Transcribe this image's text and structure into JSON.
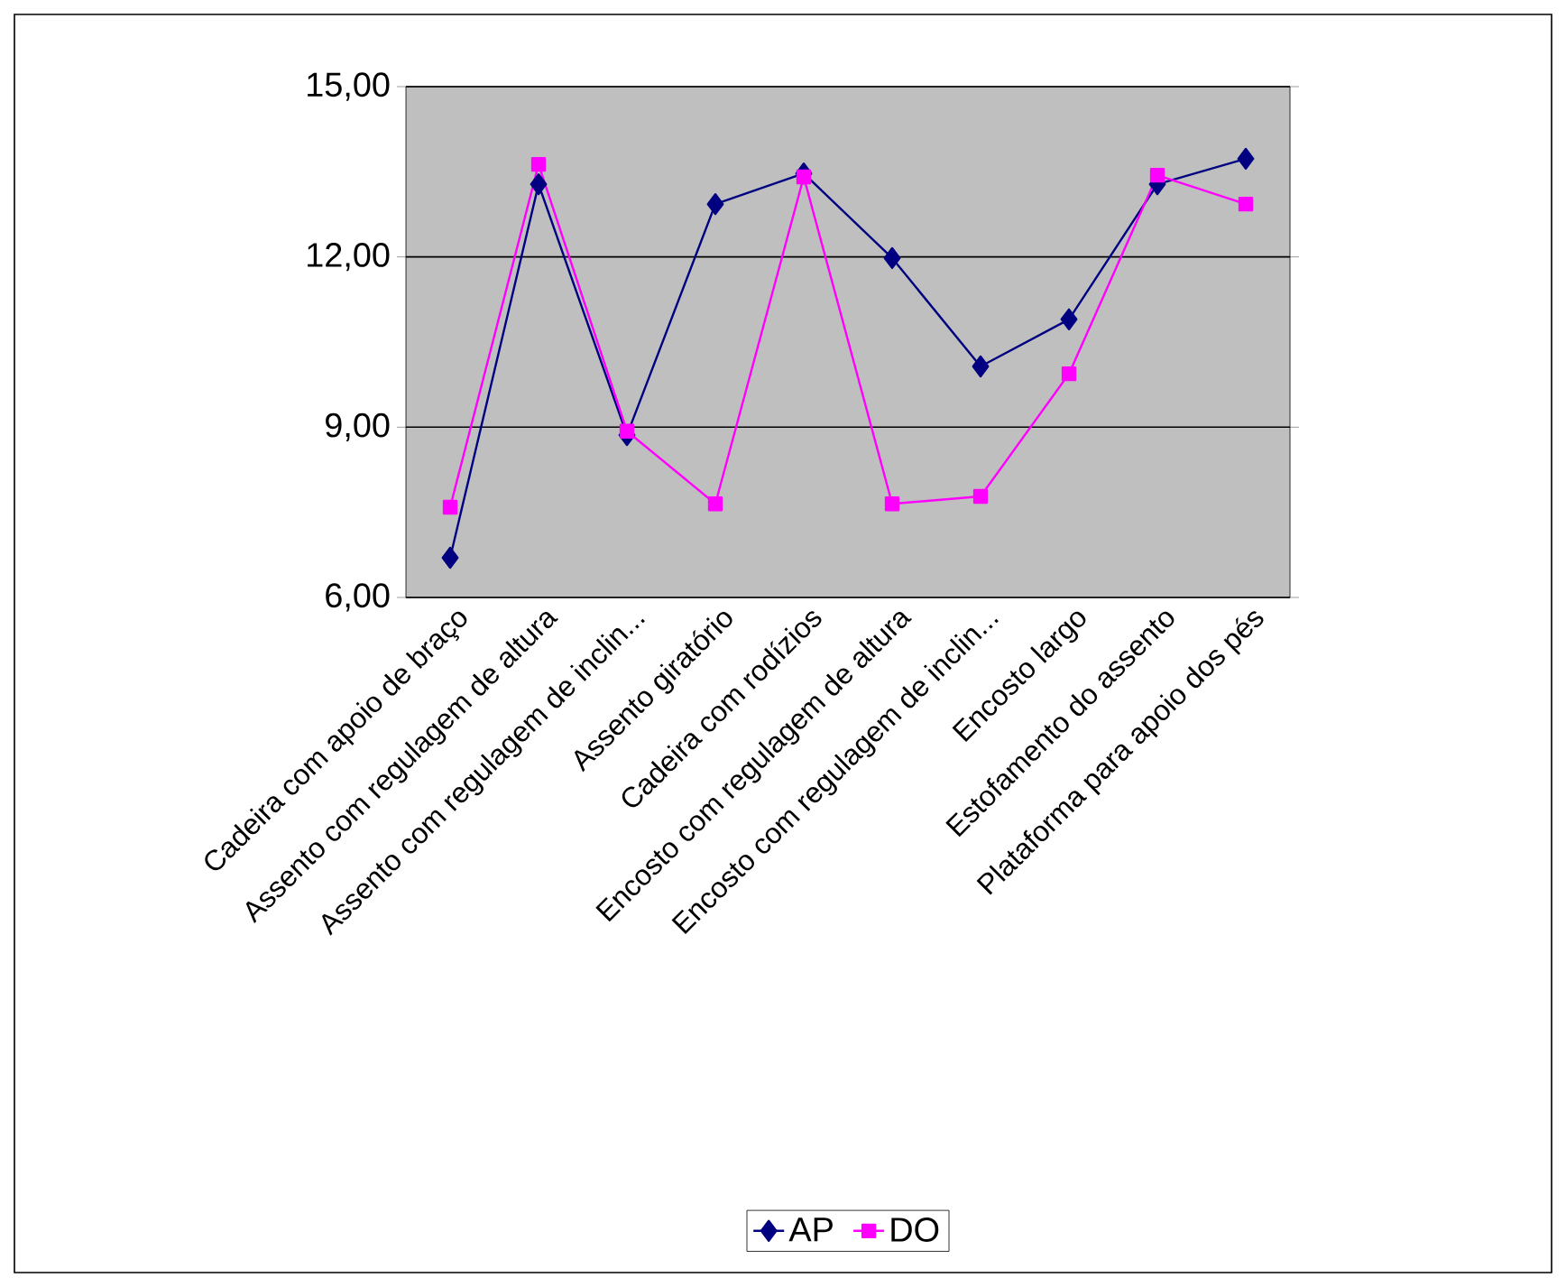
{
  "chart_data": {
    "type": "line",
    "categories": [
      "Cadeira com apoio de braço",
      "Assento com regulagem de altura",
      "Assento com regulagem de inclin...",
      "Assento giratório",
      "Cadeira com rodízios",
      "Encosto com regulagem de altura",
      "Encosto com regulagem de inclin...",
      "Encosto largo",
      "Estofamento do assento",
      "Plataforma para apoio dos pés"
    ],
    "series": [
      {
        "name": "AP",
        "color": "#000080",
        "marker": "diamond",
        "values": [
          6.7,
          13.28,
          8.86,
          12.93,
          13.47,
          11.98,
          10.07,
          10.9,
          13.28,
          13.73
        ]
      },
      {
        "name": "DO",
        "color": "#ff00ff",
        "marker": "square",
        "values": [
          7.59,
          13.63,
          8.93,
          7.65,
          13.41,
          7.65,
          7.78,
          9.94,
          13.44,
          12.93
        ]
      }
    ],
    "ylim": [
      6,
      15
    ],
    "yticks": [
      {
        "value": 6,
        "label": "6,00"
      },
      {
        "value": 9,
        "label": "9,00"
      },
      {
        "value": 12,
        "label": "12,00"
      },
      {
        "value": 15,
        "label": "15,00"
      }
    ],
    "grid": "y",
    "legend": "bottom"
  }
}
